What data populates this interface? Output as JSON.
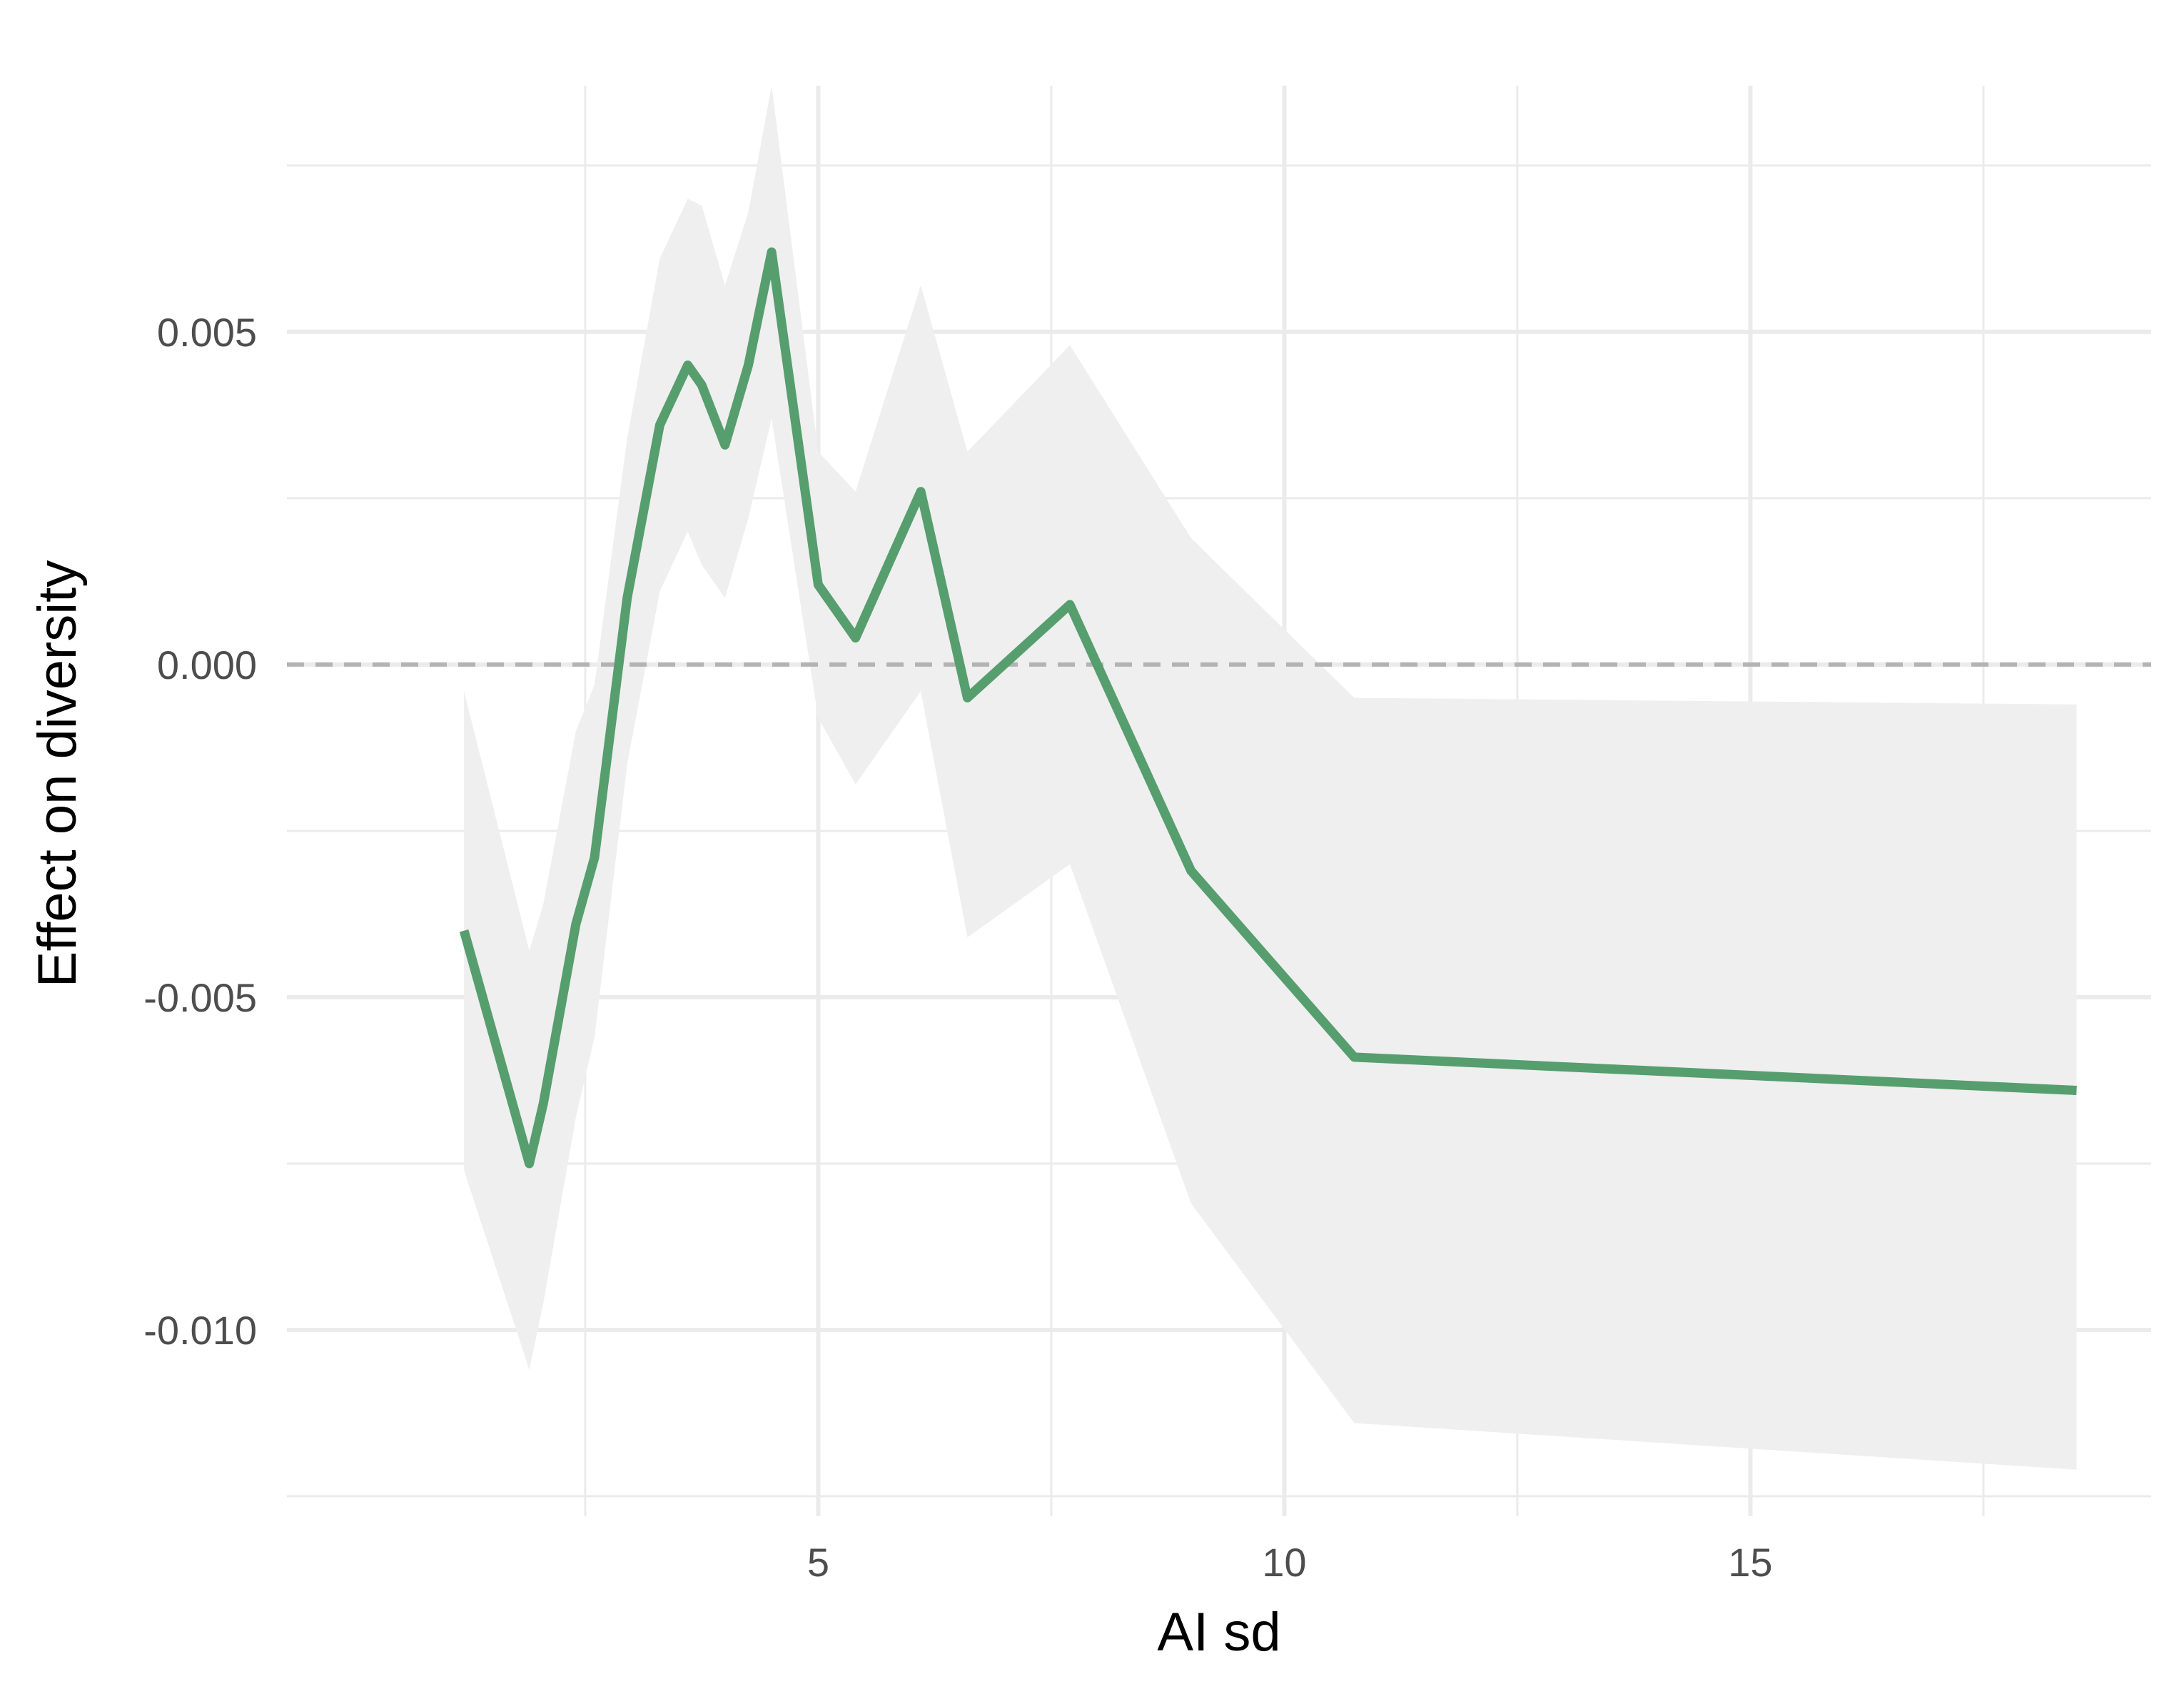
{
  "chart_data": {
    "type": "line",
    "title": "",
    "xlabel": "AI sd",
    "ylabel": "Effect on diversity",
    "xlim": [
      -0.7,
      19.3
    ],
    "ylim": [
      -0.0128,
      0.0087
    ],
    "x_ticks": [
      5,
      10,
      15
    ],
    "x_tick_labels": [
      "5",
      "10",
      "15"
    ],
    "x_minor_ticks": [
      2.5,
      7.5,
      12.5,
      17.5
    ],
    "y_ticks": [
      -0.01,
      -0.005,
      0.0,
      0.005
    ],
    "y_tick_labels": [
      "-0.010",
      "-0.005",
      "0.000",
      "0.005"
    ],
    "y_minor_ticks": [
      -0.0125,
      -0.0075,
      -0.0025,
      0.0025,
      0.0075
    ],
    "grid": true,
    "reference_line": {
      "y": 0.0,
      "style": "dashed",
      "color": "#b3b3b3"
    },
    "colors": {
      "line": "#569e6e",
      "band": "#efefef",
      "grid": "#ebebeb"
    },
    "series": [
      {
        "x": [
          1.2,
          1.9,
          2.05,
          2.4,
          2.6,
          2.95,
          3.3,
          3.6,
          3.75,
          4.0,
          4.25,
          4.5,
          5.0,
          5.4,
          6.1,
          6.6,
          7.7,
          9.0,
          10.75,
          18.5
        ],
        "y": [
          -0.004,
          -0.0075,
          -0.0066,
          -0.0039,
          -0.0029,
          0.001,
          0.0036,
          0.0045,
          0.0042,
          0.0033,
          0.0045,
          0.0062,
          0.0012,
          0.0004,
          0.0026,
          -0.0005,
          0.0009,
          -0.0031,
          -0.0059,
          -0.0064
        ],
        "lower": [
          -0.0076,
          -0.0106,
          -0.0096,
          -0.0068,
          -0.0056,
          -0.0015,
          0.0011,
          0.002,
          0.0015,
          0.001,
          0.0022,
          0.0037,
          -0.0008,
          -0.0018,
          -0.0004,
          -0.0041,
          -0.003,
          -0.0081,
          -0.0114,
          -0.0121
        ],
        "upper": [
          -0.0004,
          -0.0043,
          -0.0036,
          -0.001,
          -0.0003,
          0.0034,
          0.0061,
          0.007,
          0.0069,
          0.0057,
          0.0068,
          0.0087,
          0.0032,
          0.0026,
          0.0057,
          0.0032,
          0.0048,
          0.0019,
          -0.0005,
          -0.0006
        ]
      }
    ]
  }
}
